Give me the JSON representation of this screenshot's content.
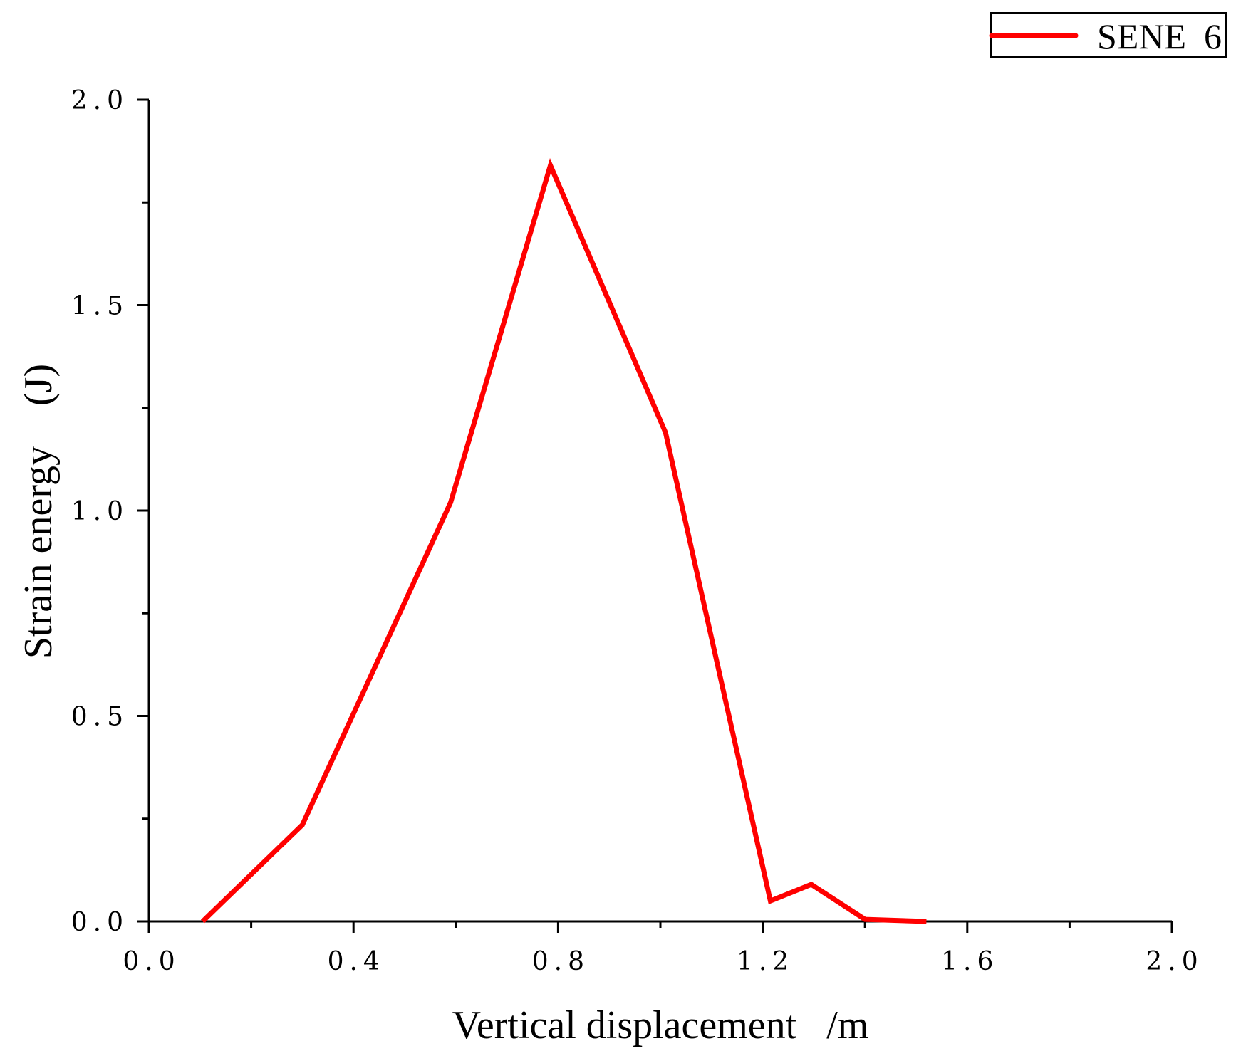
{
  "chart_data": {
    "type": "line",
    "title": "",
    "xlabel": "Vertical displacement   /m",
    "ylabel": "Strain energy    (J)",
    "xlim": [
      0.0,
      2.0
    ],
    "ylim": [
      0.0,
      2.0
    ],
    "x_ticks": [
      0.0,
      0.4,
      0.8,
      1.2,
      1.6,
      2.0
    ],
    "x_tick_labels": [
      "0.0",
      "0.4",
      "0.8",
      "1.2",
      "1.6",
      "2.0"
    ],
    "x_minor_ticks": [
      0.2,
      0.6,
      1.0,
      1.4,
      1.8
    ],
    "y_ticks": [
      0.0,
      0.5,
      1.0,
      1.5,
      2.0
    ],
    "y_tick_labels": [
      "0.0",
      "0.5",
      "1.0",
      "1.5",
      "2.0"
    ],
    "y_minor_ticks": [
      0.25,
      0.75,
      1.25,
      1.75
    ],
    "grid": false,
    "legend_position": "top-right",
    "series": [
      {
        "name": "SENE  6",
        "color": "#ff0000",
        "x": [
          0.105,
          0.3,
          0.59,
          0.785,
          1.01,
          1.215,
          1.295,
          1.4,
          1.52
        ],
        "y": [
          0.0,
          0.235,
          1.02,
          1.84,
          1.19,
          0.05,
          0.09,
          0.005,
          0.0
        ]
      }
    ]
  }
}
